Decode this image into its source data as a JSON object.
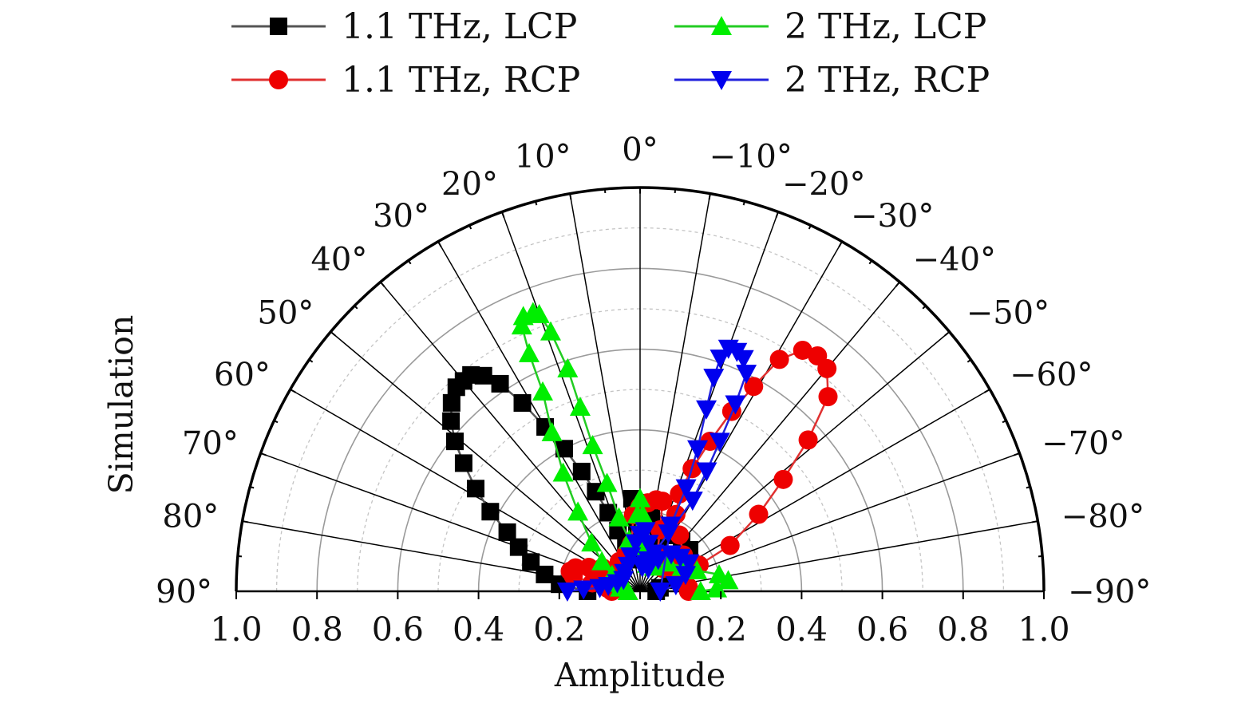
{
  "chart_data": {
    "type": "polar-half",
    "xlabel": "Amplitude",
    "ylabel": "Simulation",
    "r_range": [
      0,
      1.0
    ],
    "theta_range_deg": [
      -90,
      90
    ],
    "r_tick_labels": [
      "1.0",
      "0.8",
      "0.6",
      "0.4",
      "0.2",
      "0",
      "0.2",
      "0.4",
      "0.6",
      "0.8",
      "1.0"
    ],
    "angle_tick_labels": [
      {
        "deg": 90,
        "label": "90°"
      },
      {
        "deg": 80,
        "label": "80°"
      },
      {
        "deg": 70,
        "label": "70°"
      },
      {
        "deg": 60,
        "label": "60°"
      },
      {
        "deg": 50,
        "label": "50°"
      },
      {
        "deg": 40,
        "label": "40°"
      },
      {
        "deg": 30,
        "label": "30°"
      },
      {
        "deg": 20,
        "label": "20°"
      },
      {
        "deg": 10,
        "label": "10°"
      },
      {
        "deg": 0,
        "label": "0°"
      },
      {
        "deg": -10,
        "label": "−10°"
      },
      {
        "deg": -20,
        "label": "−20°"
      },
      {
        "deg": -30,
        "label": "−30°"
      },
      {
        "deg": -40,
        "label": "−40°"
      },
      {
        "deg": -50,
        "label": "−50°"
      },
      {
        "deg": -60,
        "label": "−60°"
      },
      {
        "deg": -70,
        "label": "−70°"
      },
      {
        "deg": -80,
        "label": "−80°"
      },
      {
        "deg": -90,
        "label": "−90°"
      }
    ],
    "legend_position": "top",
    "series": [
      {
        "name": "1.1 THz, LCP",
        "color": "#000000",
        "line_color": "#555555",
        "marker": "square",
        "points": [
          [
            90,
            0.13
          ],
          [
            85,
            0.2
          ],
          [
            80,
            0.24
          ],
          [
            75,
            0.28
          ],
          [
            70,
            0.32
          ],
          [
            66,
            0.36
          ],
          [
            62,
            0.42
          ],
          [
            58,
            0.48
          ],
          [
            54,
            0.54
          ],
          [
            51,
            0.59
          ],
          [
            48,
            0.63
          ],
          [
            45,
            0.66
          ],
          [
            42,
            0.68
          ],
          [
            40,
            0.68
          ],
          [
            38,
            0.68
          ],
          [
            36,
            0.66
          ],
          [
            34,
            0.62
          ],
          [
            32,
            0.55
          ],
          [
            30,
            0.47
          ],
          [
            28,
            0.4
          ],
          [
            26,
            0.33
          ],
          [
            24,
            0.27
          ],
          [
            22,
            0.21
          ],
          [
            20,
            0.16
          ],
          [
            17,
            0.12
          ],
          [
            12,
            0.08
          ],
          [
            6,
            0.09
          ],
          [
            3,
            0.15
          ],
          [
            0,
            0.2
          ],
          [
            5,
            0.23
          ],
          [
            -4,
            0.22
          ],
          [
            -8,
            0.2
          ],
          [
            -12,
            0.17
          ],
          [
            -20,
            0.14
          ],
          [
            -30,
            0.16
          ],
          [
            -40,
            0.16
          ],
          [
            -50,
            0.16
          ],
          [
            -60,
            0.12
          ],
          [
            -70,
            0.08
          ],
          [
            -80,
            0.05
          ],
          [
            -90,
            0.04
          ]
        ]
      },
      {
        "name": "1.1 THz, RCP",
        "color": "#ee0000",
        "line_color": "#e03030",
        "marker": "circle",
        "points": [
          [
            90,
            0.07
          ],
          [
            85,
            0.08
          ],
          [
            80,
            0.12
          ],
          [
            77,
            0.17
          ],
          [
            74,
            0.18
          ],
          [
            70,
            0.17
          ],
          [
            65,
            0.14
          ],
          [
            58,
            0.11
          ],
          [
            45,
            0.08
          ],
          [
            35,
            0.09
          ],
          [
            20,
            0.1
          ],
          [
            10,
            0.12
          ],
          [
            5,
            0.19
          ],
          [
            0,
            0.21
          ],
          [
            -5,
            0.22
          ],
          [
            -10,
            0.23
          ],
          [
            -14,
            0.23
          ],
          [
            -18,
            0.16
          ],
          [
            -25,
            0.1
          ],
          [
            -35,
            0.08
          ],
          [
            -45,
            0.08
          ],
          [
            -55,
            0.1
          ],
          [
            -62,
            0.12
          ],
          [
            -66,
            0.16
          ],
          [
            -63,
            0.25
          ],
          [
            -57,
            0.35
          ],
          [
            -52,
            0.45
          ],
          [
            -48,
            0.56
          ],
          [
            -44,
            0.67
          ],
          [
            -40,
            0.72
          ],
          [
            -37,
            0.73
          ],
          [
            -34,
            0.72
          ],
          [
            -31,
            0.67
          ],
          [
            -29,
            0.58
          ],
          [
            -27,
            0.5
          ],
          [
            -25,
            0.41
          ],
          [
            -23,
            0.33
          ],
          [
            -22,
            0.26
          ],
          [
            -25,
            0.21
          ],
          [
            -35,
            0.17
          ],
          [
            -50,
            0.14
          ],
          [
            -70,
            0.12
          ],
          [
            -85,
            0.12
          ],
          [
            -90,
            0.12
          ]
        ]
      },
      {
        "name": "2 THz, LCP",
        "color": "#00ee00",
        "line_color": "#22cc22",
        "marker": "triangle-up",
        "points": [
          [
            90,
            0.03
          ],
          [
            80,
            0.05
          ],
          [
            70,
            0.06
          ],
          [
            60,
            0.08
          ],
          [
            52,
            0.12
          ],
          [
            45,
            0.17
          ],
          [
            38,
            0.25
          ],
          [
            33,
            0.35
          ],
          [
            29,
            0.45
          ],
          [
            26,
            0.55
          ],
          [
            25,
            0.65
          ],
          [
            24,
            0.72
          ],
          [
            23,
            0.74
          ],
          [
            21,
            0.74
          ],
          [
            20,
            0.73
          ],
          [
            19,
            0.68
          ],
          [
            18,
            0.58
          ],
          [
            18,
            0.48
          ],
          [
            18,
            0.38
          ],
          [
            17,
            0.28
          ],
          [
            16,
            0.19
          ],
          [
            12,
            0.13
          ],
          [
            6,
            0.11
          ],
          [
            2,
            0.19
          ],
          [
            0,
            0.23
          ],
          [
            -2,
            0.19
          ],
          [
            -6,
            0.12
          ],
          [
            -15,
            0.07
          ],
          [
            -30,
            0.07
          ],
          [
            -45,
            0.1
          ],
          [
            -60,
            0.12
          ],
          [
            -70,
            0.15
          ],
          [
            -78,
            0.2
          ],
          [
            -83,
            0.22
          ],
          [
            -88,
            0.19
          ],
          [
            -90,
            0.15
          ]
        ]
      },
      {
        "name": "2 THz, RCP",
        "color": "#0000ee",
        "line_color": "#2222dd",
        "marker": "triangle-down",
        "points": [
          [
            90,
            0.18
          ],
          [
            88,
            0.14
          ],
          [
            85,
            0.1
          ],
          [
            80,
            0.08
          ],
          [
            70,
            0.06
          ],
          [
            55,
            0.05
          ],
          [
            40,
            0.06
          ],
          [
            25,
            0.07
          ],
          [
            15,
            0.09
          ],
          [
            5,
            0.12
          ],
          [
            0,
            0.14
          ],
          [
            -5,
            0.15
          ],
          [
            -10,
            0.12
          ],
          [
            -15,
            0.08
          ],
          [
            -20,
            0.06
          ],
          [
            -30,
            0.09
          ],
          [
            -40,
            0.12
          ],
          [
            -50,
            0.13
          ],
          [
            -60,
            0.14
          ],
          [
            -70,
            0.12
          ],
          [
            -80,
            0.09
          ],
          [
            -90,
            0.05
          ],
          [
            -25,
            0.18
          ],
          [
            -24,
            0.28
          ],
          [
            -22,
            0.38
          ],
          [
            -20,
            0.48
          ],
          [
            -19,
            0.56
          ],
          [
            -19,
            0.61
          ],
          [
            -20,
            0.64
          ],
          [
            -22,
            0.64
          ],
          [
            -24,
            0.63
          ],
          [
            -26,
            0.6
          ],
          [
            -27,
            0.52
          ],
          [
            -28,
            0.42
          ],
          [
            -29,
            0.34
          ],
          [
            -30,
            0.26
          ],
          [
            -26,
            0.16
          ],
          [
            -20,
            0.1
          ],
          [
            -12,
            0.07
          ],
          [
            -5,
            0.06
          ]
        ]
      }
    ]
  }
}
